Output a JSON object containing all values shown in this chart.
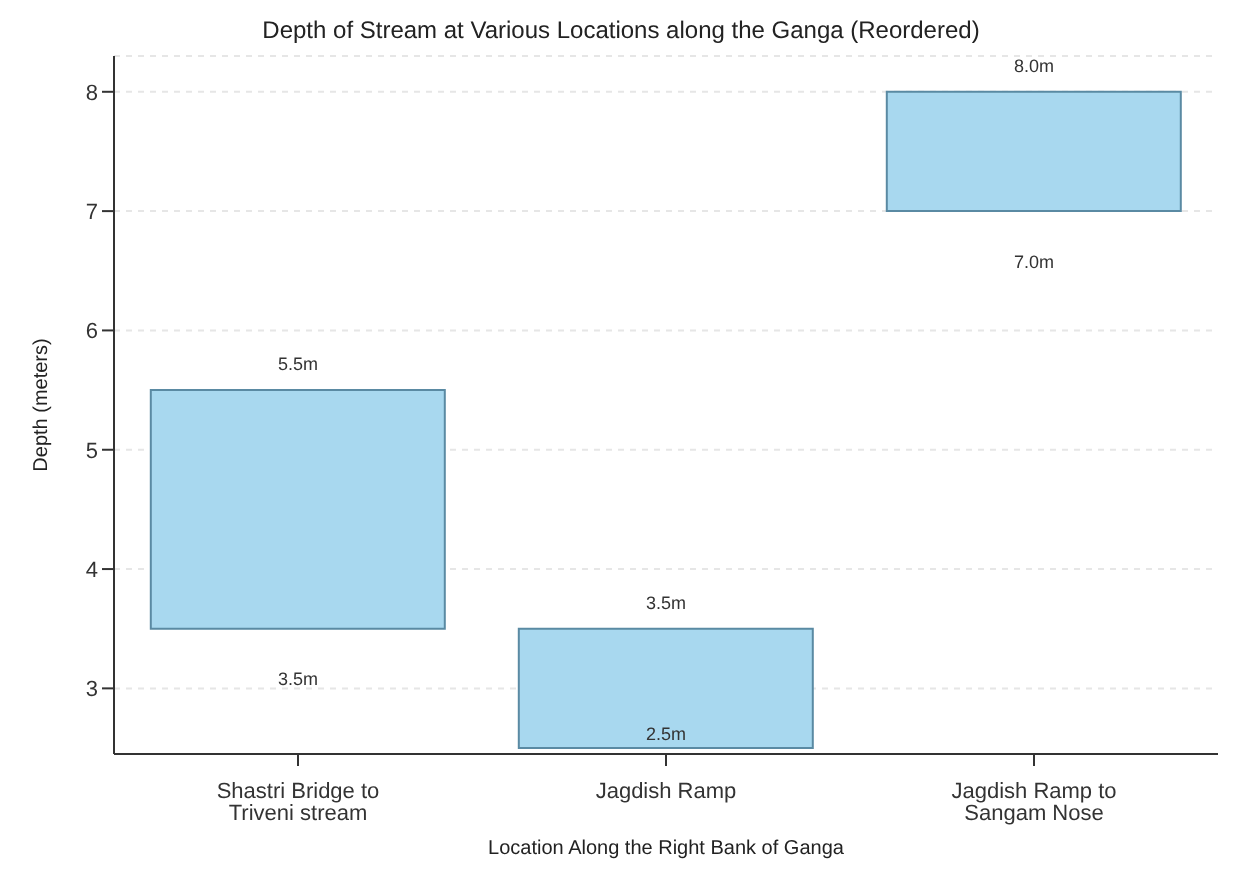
{
  "chart_data": {
    "type": "bar",
    "title": "Depth of Stream at Various Locations along the Ganga (Reordered)",
    "xlabel": "Location Along the Right Bank of Ganga",
    "ylabel": "Depth (meters)",
    "categories": [
      "Shastri Bridge to Triveni stream",
      "Jagdish Ramp",
      "Jagdish Ramp to Sangam Nose"
    ],
    "base": [
      3.5,
      2.5,
      7.0
    ],
    "values": [
      2.0,
      1.0,
      1.0
    ],
    "color": "#a8d8ef",
    "ylim": [
      2.45,
      8.3
    ],
    "yticks": [
      3,
      4,
      5,
      6,
      7,
      8
    ],
    "grid": "y",
    "annotations": [
      {
        "text": "5.5m",
        "x": "Shastri Bridge to Triveni stream",
        "y": 5.5
      },
      {
        "text": "3.5m",
        "x": "Shastri Bridge to Triveni stream",
        "y": 3.5
      },
      {
        "text": "3.5m",
        "x": "Jagdish Ramp",
        "y": 3.5
      },
      {
        "text": "2.5m",
        "x": "Jagdish Ramp",
        "y": 2.5
      },
      {
        "text": "8.0m",
        "x": "Jagdish Ramp to Sangam Nose",
        "y": 8.0
      },
      {
        "text": "7.0m",
        "x": "Jagdish Ramp to Sangam Nose",
        "y": 7.0
      }
    ]
  }
}
